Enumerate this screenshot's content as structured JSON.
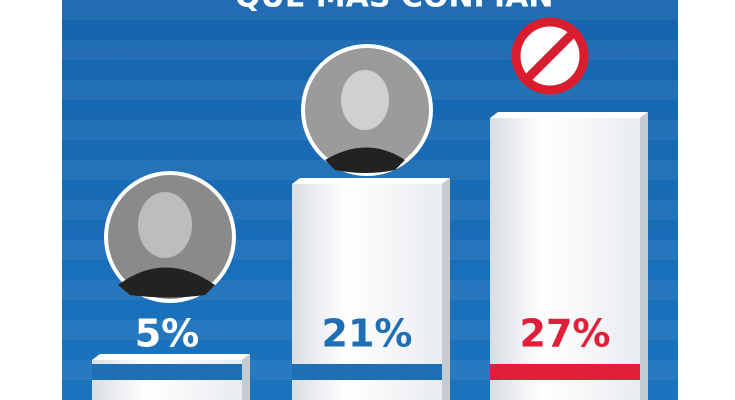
{
  "chart_data": {
    "type": "bar",
    "title": "QUE MÁS CONFIAN",
    "categories": [
      null,
      null,
      null
    ],
    "values": [
      5,
      21,
      27
    ],
    "value_labels": [
      "5%",
      "21%",
      "27%"
    ],
    "label_colors": [
      "#ffffff",
      "#1f6fb5",
      "#e0203a"
    ],
    "stripe_colors": [
      "#1f6fb5",
      "#1f6fb5",
      "#e0203a"
    ],
    "color": "#ffffff",
    "ylim": [
      0,
      37
    ]
  }
}
